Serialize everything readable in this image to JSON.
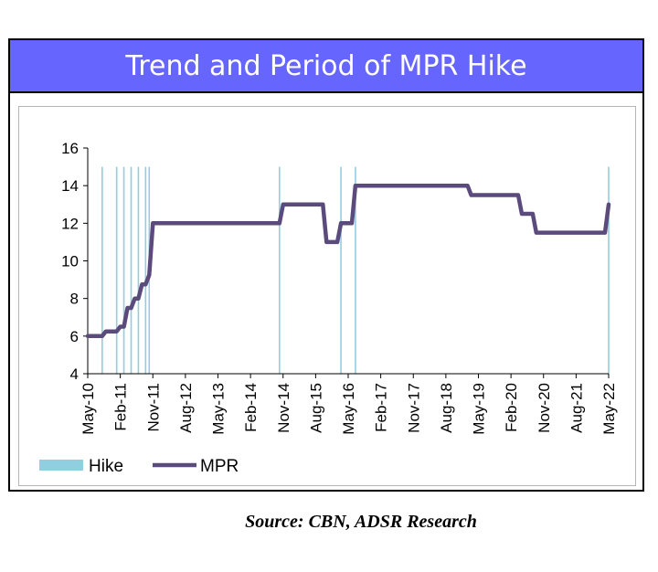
{
  "chart_data": {
    "type": "line",
    "title": "Trend and Period of MPR Hike",
    "xlabel": "",
    "ylabel": "",
    "ylim": [
      4,
      16
    ],
    "yticks": [
      4,
      6,
      8,
      10,
      12,
      14,
      16
    ],
    "x_start": "2010-05",
    "x_end": "2022-05",
    "x_tick_labels": [
      "May-10",
      "Feb-11",
      "Nov-11",
      "Aug-12",
      "May-13",
      "Feb-14",
      "Nov-14",
      "Aug-15",
      "May-16",
      "Feb-17",
      "Nov-17",
      "Aug-18",
      "May-19",
      "Feb-20",
      "Nov-20",
      "Aug-21",
      "May-22"
    ],
    "legend": [
      "Hike",
      "MPR"
    ],
    "legend_position": "bottom-left",
    "colors": {
      "mpr": "#5b4a7c",
      "hike": "#8fcfe0"
    },
    "series": [
      {
        "name": "MPR",
        "points": [
          [
            "2010-05",
            6.0
          ],
          [
            "2010-09",
            6.0
          ],
          [
            "2010-10",
            6.25
          ],
          [
            "2011-01",
            6.25
          ],
          [
            "2011-02",
            6.5
          ],
          [
            "2011-03",
            6.5
          ],
          [
            "2011-04",
            7.5
          ],
          [
            "2011-05",
            7.5
          ],
          [
            "2011-06",
            8.0
          ],
          [
            "2011-07",
            8.0
          ],
          [
            "2011-08",
            8.75
          ],
          [
            "2011-09",
            8.75
          ],
          [
            "2011-10",
            9.25
          ],
          [
            "2011-11",
            12.0
          ],
          [
            "2014-10",
            12.0
          ],
          [
            "2014-11",
            13.0
          ],
          [
            "2015-10",
            13.0
          ],
          [
            "2015-11",
            11.0
          ],
          [
            "2016-02",
            11.0
          ],
          [
            "2016-03",
            12.0
          ],
          [
            "2016-06",
            12.0
          ],
          [
            "2016-07",
            14.0
          ],
          [
            "2019-02",
            14.0
          ],
          [
            "2019-03",
            13.5
          ],
          [
            "2020-04",
            13.5
          ],
          [
            "2020-05",
            12.5
          ],
          [
            "2020-08",
            12.5
          ],
          [
            "2020-09",
            11.5
          ],
          [
            "2022-04",
            11.5
          ],
          [
            "2022-05",
            13.0
          ]
        ]
      },
      {
        "name": "Hike",
        "months": [
          "2010-09",
          "2011-01",
          "2011-03",
          "2011-05",
          "2011-07",
          "2011-09",
          "2011-10",
          "2014-10",
          "2016-03",
          "2016-07",
          "2022-05"
        ]
      }
    ]
  },
  "source_text": "Source: CBN, ADSR Research"
}
